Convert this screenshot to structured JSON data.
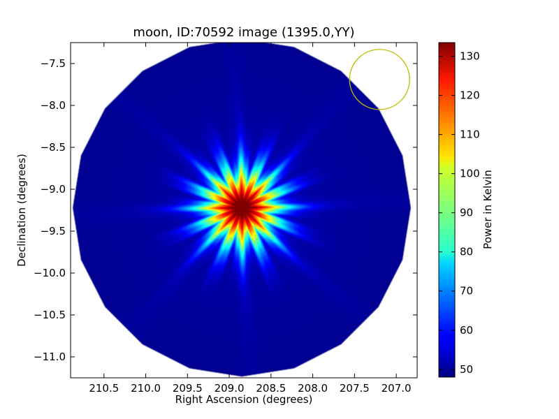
{
  "chart_data": {
    "type": "heatmap",
    "title": "moon, ID:70592 image (1395.0,YY)",
    "xlabel": "Right Ascension (degrees)",
    "ylabel": "Declination (degrees)",
    "colorbar_label": "Power in Kelvin",
    "colormap": "jet",
    "x_inverted": true,
    "xlim": [
      210.9,
      206.75
    ],
    "ylim": [
      -11.25,
      -7.25
    ],
    "xticks": [
      210.5,
      210.0,
      209.5,
      209.0,
      208.5,
      208.0,
      207.5,
      207.0
    ],
    "xtick_labels": [
      "210.5",
      "210.0",
      "209.5",
      "209.0",
      "208.5",
      "208.0",
      "207.5",
      "207.0"
    ],
    "yticks": [
      -7.5,
      -8.0,
      -8.5,
      -9.0,
      -9.5,
      -10.0,
      -10.5,
      -11.0
    ],
    "ytick_labels": [
      "−7.5",
      "−8.0",
      "−8.5",
      "−9.0",
      "−9.5",
      "−10.0",
      "−10.5",
      "−11.0"
    ],
    "colorbar_range": [
      48,
      133.5
    ],
    "colorbar_ticks": [
      50,
      60,
      70,
      80,
      90,
      100,
      110,
      120,
      130
    ],
    "colorbar_tick_labels": [
      "50",
      "60",
      "70",
      "80",
      "90",
      "100",
      "110",
      "120",
      "130"
    ],
    "field_center": [
      208.85,
      -9.22
    ],
    "field_radius_deg": 2.03,
    "field_polygon_sides": 20,
    "background_level": 49,
    "source": {
      "ra": 208.85,
      "dec": -9.22,
      "peak": 133,
      "core_radius_deg": 0.45,
      "ripple_count": 16
    },
    "beam_circle": {
      "ra": 207.2,
      "dec": -7.69,
      "radius_deg": 0.36,
      "color": "#bfbf00"
    }
  }
}
